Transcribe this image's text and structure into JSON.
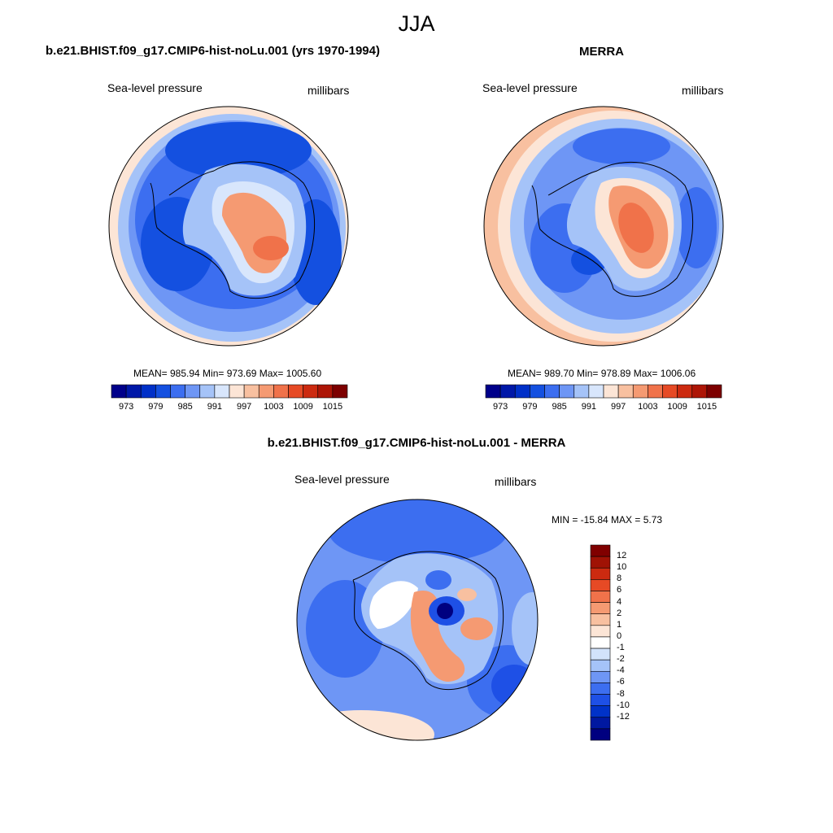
{
  "title": "JJA",
  "panels": [
    {
      "title": "b.e21.BHIST.f09_g17.CMIP6-hist-noLu.001 (yrs 1970-1994)",
      "variable": "Sea-level pressure",
      "units": "millibars",
      "stats": "MEAN= 985.94  Min= 973.69  Max= 1005.60"
    },
    {
      "title": "MERRA",
      "variable": "Sea-level pressure",
      "units": "millibars",
      "stats": "MEAN= 989.70  Min= 978.89  Max= 1006.06"
    },
    {
      "title": "b.e21.BHIST.f09_g17.CMIP6-hist-noLu.001 - MERRA",
      "variable": "Sea-level pressure",
      "units": "millibars",
      "stats": "MIN = -15.84 MAX =   5.73"
    }
  ],
  "colorbar_abs": {
    "colors": [
      "#00008a",
      "#0018a8",
      "#0030c8",
      "#1450e0",
      "#3c6ef0",
      "#6e96f5",
      "#a5c3f8",
      "#d8e6fc",
      "#fce5d6",
      "#f8c0a0",
      "#f59a72",
      "#f0724a",
      "#e64a25",
      "#cc2a10",
      "#ad1506",
      "#7d0000"
    ],
    "tick_labels": [
      "973",
      "979",
      "985",
      "991",
      "997",
      "1003",
      "1009",
      "1015"
    ]
  },
  "colorbar_diff": {
    "colors": [
      "#000080",
      "#0018a0",
      "#0032c8",
      "#1e50e6",
      "#3c6ef0",
      "#6e96f5",
      "#a5c3f8",
      "#d2e3fb",
      "#ffffff",
      "#fce5d6",
      "#f8c0a0",
      "#f59a72",
      "#f0724a",
      "#e64a25",
      "#cc2a10",
      "#a01205",
      "#800000"
    ],
    "tick_labels": [
      "12",
      "10",
      "8",
      "6",
      "4",
      "2",
      "1",
      "0",
      "-1",
      "-2",
      "-4",
      "-6",
      "-8",
      "-10",
      "-12"
    ]
  },
  "map_colors": {
    "outer_ring": "#fce5d6",
    "ocean_mid": "#3c6ef0",
    "ocean_deep": "#1450e0",
    "ocean_light": "#6e96f5",
    "pale": "#a5c3f8",
    "high": "#f59a72",
    "higher": "#f0724a"
  }
}
